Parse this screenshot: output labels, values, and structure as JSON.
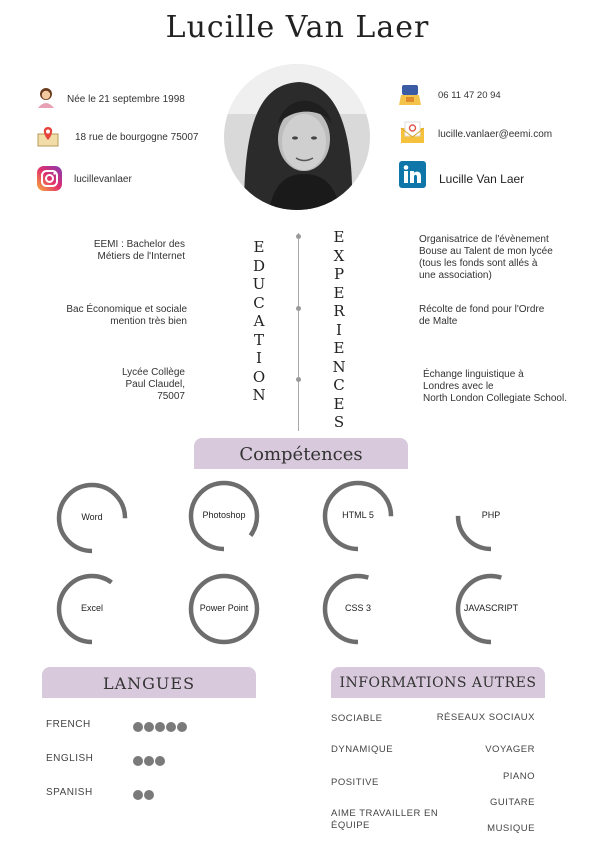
{
  "name": "Lucille Van Laer",
  "contact_left": [
    {
      "icon": "woman-icon",
      "text": "Née le 21 septembre 1998"
    },
    {
      "icon": "map-pin-icon",
      "text": "18 rue de bourgogne 75007"
    },
    {
      "icon": "instagram-icon",
      "text": "lucillevanlaer"
    }
  ],
  "contact_right": [
    {
      "icon": "phone-icon",
      "text": "06 11 47 20 94"
    },
    {
      "icon": "mail-icon",
      "text": "lucille.vanlaer@eemi.com"
    },
    {
      "icon": "linkedin-icon",
      "text": "Lucille Van Laer"
    }
  ],
  "education_heading": "EDUCATION",
  "experiences_heading": "EXPERIENCES",
  "education": [
    [
      "EEMI :  Bachelor des",
      "Métiers de l'Internet"
    ],
    [
      "Bac Économique et sociale",
      "mention très bien"
    ],
    [
      "Lycée Collège",
      "Paul Claudel,",
      "75007"
    ]
  ],
  "experiences": [
    [
      "Organisatrice de l'évènement",
      "Bouse au Talent de mon lycée",
      "(tous les fonds sont allés à",
      "une association)"
    ],
    [
      "Récolte de fond pour l'Ordre",
      "de Malte"
    ],
    [
      "Échange linguistique à",
      "Londres avec le",
      "North London Collegiate School."
    ]
  ],
  "competences_title": "Compétences",
  "skills": [
    {
      "name": "Word",
      "level": 0.75
    },
    {
      "name": "Photoshop",
      "level": 0.85
    },
    {
      "name": "HTML 5",
      "level": 0.75
    },
    {
      "name": "PHP",
      "level": 0.25
    },
    {
      "name": "Excel",
      "level": 0.6
    },
    {
      "name": "Power Point",
      "level": 1.0
    },
    {
      "name": "CSS 3",
      "level": 0.55
    },
    {
      "name": "JAVASCRIPT",
      "level": 0.55
    }
  ],
  "langues_title": "LANGUES",
  "languages": [
    {
      "name": "FRENCH",
      "level": 5
    },
    {
      "name": "ENGLISH",
      "level": 3
    },
    {
      "name": "SPANISH",
      "level": 2
    }
  ],
  "infos_title": "INFORMATIONS AUTRES",
  "infos_left": [
    "SOCIABLE",
    "DYNAMIQUE",
    "POSITIVE",
    "AIME TRAVAILLER EN ÉQUIPE"
  ],
  "infos_right": [
    "RÉSEAUX SOCIAUX",
    "VOYAGER",
    "PIANO",
    "GUITARE",
    "MUSIQUE"
  ],
  "colors": {
    "banner": "#d8c9dc",
    "ring": "#6d6d6d",
    "dots": "#7a7a7a"
  }
}
